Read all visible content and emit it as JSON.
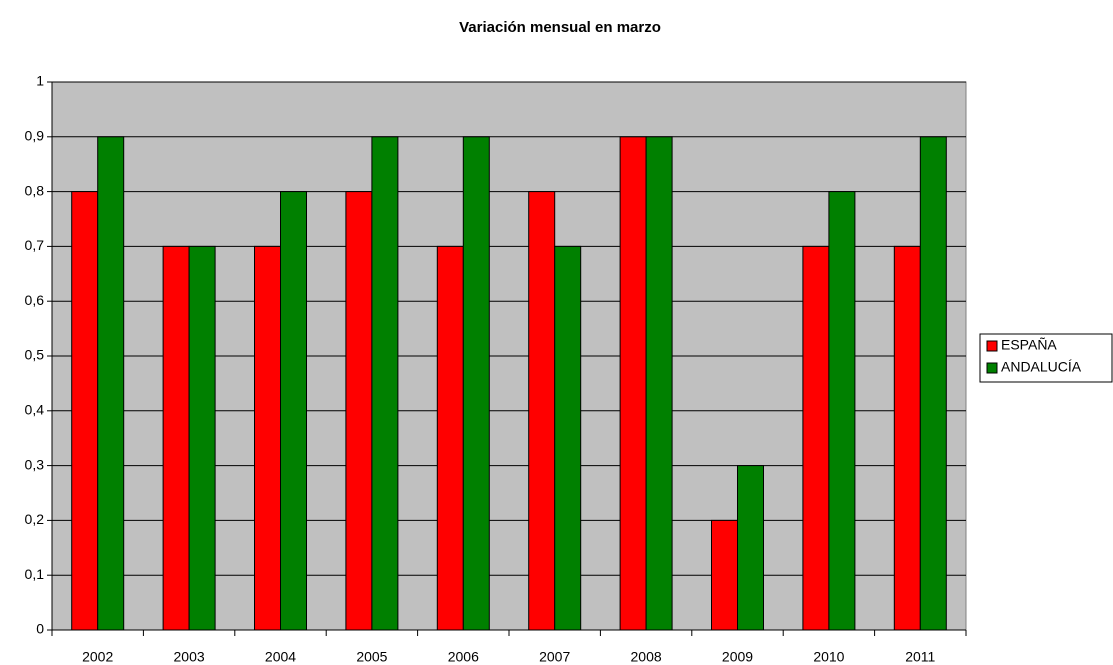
{
  "chart_data": {
    "type": "bar",
    "title": "Variación mensual en marzo",
    "categories": [
      "2002",
      "2003",
      "2004",
      "2005",
      "2006",
      "2007",
      "2008",
      "2009",
      "2010",
      "2011"
    ],
    "series": [
      {
        "name": "ESPAÑA",
        "color": "#ff0000",
        "values": [
          0.8,
          0.7,
          0.7,
          0.8,
          0.7,
          0.8,
          0.9,
          0.2,
          0.7,
          0.7
        ]
      },
      {
        "name": "ANDALUCÍA",
        "color": "#008000",
        "values": [
          0.9,
          0.7,
          0.8,
          0.9,
          0.9,
          0.7,
          0.9,
          0.3,
          0.8,
          0.9
        ]
      }
    ],
    "ylim": [
      0,
      1
    ],
    "yticks": [
      0,
      {
        "value": 0.1,
        "label": "0,1"
      },
      {
        "value": 0.2,
        "label": "0,2"
      },
      {
        "value": 0.3,
        "label": "0,3"
      },
      {
        "value": 0.4,
        "label": "0,4"
      },
      {
        "value": 0.5,
        "label": "0,5"
      },
      {
        "value": 0.6,
        "label": "0,6"
      },
      {
        "value": 0.7,
        "label": "0,7"
      },
      {
        "value": 0.8,
        "label": "0,8"
      },
      {
        "value": 0.9,
        "label": "0,9"
      },
      1
    ],
    "grid": true,
    "legend": "right",
    "background": "#c0c0c0"
  }
}
